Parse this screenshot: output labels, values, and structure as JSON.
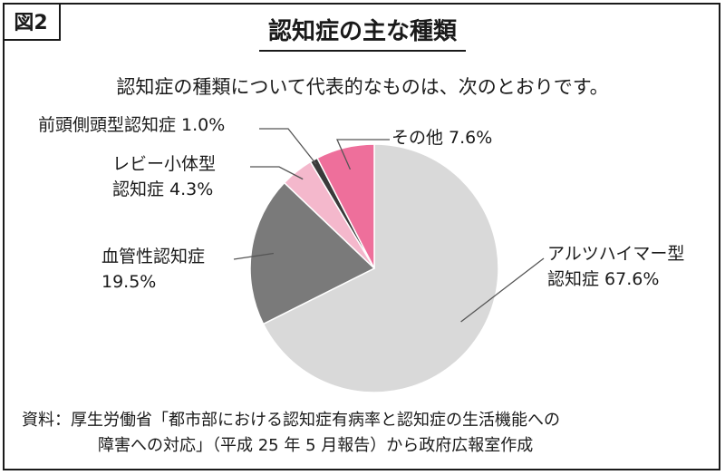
{
  "figure_label": "図2",
  "chart_data": {
    "type": "pie",
    "title": "認知症の主な種類",
    "subtitle": "認知症の種類について代表的なものは、次のとおりです。",
    "start_angle_deg": 0,
    "direction": "clockwise",
    "slices": [
      {
        "label_line1": "アルツハイマー型",
        "label_line2": "認知症 67.6%",
        "value": 67.6,
        "color": "#d9d9d9"
      },
      {
        "label_line1": "血管性認知症",
        "label_line2": "19.5%",
        "value": 19.5,
        "color": "#7a7a7a"
      },
      {
        "label_line1": "レビー小体型",
        "label_line2": "認知症 4.3%",
        "value": 4.3,
        "color": "#f4b8cc"
      },
      {
        "label_line1": "前頭側頭型認知症 1.0%",
        "label_line2": "",
        "value": 1.0,
        "color": "#3a3a3a"
      },
      {
        "label_line1": "その他 7.6%",
        "label_line2": "",
        "value": 7.6,
        "color": "#ee6f9b"
      }
    ]
  },
  "source": {
    "line1": "資料：厚生労働省「都市部における認知症有病率と認知症の生活機能への",
    "line2": "障害への対応」（平成 25 年 5 月報告）から政府広報室作成"
  }
}
